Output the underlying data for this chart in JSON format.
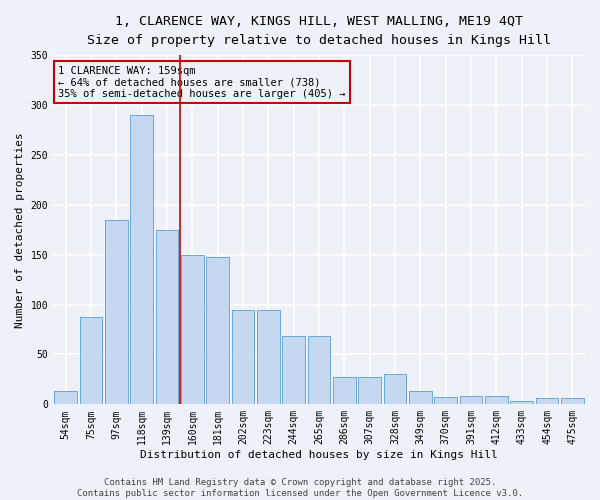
{
  "title": "1, CLARENCE WAY, KINGS HILL, WEST MALLING, ME19 4QT",
  "subtitle": "Size of property relative to detached houses in Kings Hill",
  "xlabel": "Distribution of detached houses by size in Kings Hill",
  "ylabel": "Number of detached properties",
  "categories": [
    "54sqm",
    "75sqm",
    "97sqm",
    "118sqm",
    "139sqm",
    "160sqm",
    "181sqm",
    "202sqm",
    "223sqm",
    "244sqm",
    "265sqm",
    "286sqm",
    "307sqm",
    "328sqm",
    "349sqm",
    "370sqm",
    "391sqm",
    "412sqm",
    "433sqm",
    "454sqm",
    "475sqm"
  ],
  "values": [
    13,
    88,
    185,
    290,
    175,
    150,
    148,
    95,
    95,
    68,
    68,
    27,
    27,
    30,
    13,
    7,
    8,
    8,
    3,
    6,
    6
  ],
  "bar_color": "#c5d8f0",
  "bar_edge_color": "#5a9fd4",
  "property_line_color": "#cc0000",
  "annotation_text": "1 CLARENCE WAY: 159sqm\n← 64% of detached houses are smaller (738)\n35% of semi-detached houses are larger (405) →",
  "annotation_box_color": "#cc0000",
  "background_color": "#eef2f8",
  "grid_color": "#ffffff",
  "footer": "Contains HM Land Registry data © Crown copyright and database right 2025.\nContains public sector information licensed under the Open Government Licence v3.0.",
  "ylim": [
    0,
    350
  ],
  "yticks": [
    0,
    50,
    100,
    150,
    200,
    250,
    300,
    350
  ],
  "title_fontsize": 9.5,
  "subtitle_fontsize": 8.5,
  "xlabel_fontsize": 8,
  "ylabel_fontsize": 8,
  "tick_fontsize": 7,
  "footer_fontsize": 6.5,
  "annotation_fontsize": 7.5
}
